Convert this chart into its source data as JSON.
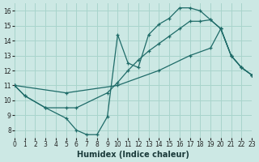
{
  "xlabel": "Humidex (Indice chaleur)",
  "background_color": "#cce8e4",
  "grid_color": "#a8d4cc",
  "line_color": "#1e6b68",
  "xlim": [
    0,
    23
  ],
  "ylim": [
    7.5,
    16.5
  ],
  "xticks": [
    0,
    1,
    2,
    3,
    4,
    5,
    6,
    7,
    8,
    9,
    10,
    11,
    12,
    13,
    14,
    15,
    16,
    17,
    18,
    19,
    20,
    21,
    22,
    23
  ],
  "yticks": [
    8,
    9,
    10,
    11,
    12,
    13,
    14,
    15,
    16
  ],
  "line1_x": [
    0,
    1,
    3,
    5,
    6,
    7,
    8,
    9,
    10,
    11,
    12,
    13,
    14,
    15,
    16,
    17,
    18,
    19,
    20,
    21,
    22,
    23
  ],
  "line1_y": [
    11,
    10.3,
    9.5,
    8.8,
    8.0,
    7.7,
    7.7,
    8.9,
    14.4,
    12.5,
    12.2,
    14.4,
    15.1,
    15.5,
    16.2,
    16.2,
    16.0,
    15.4,
    14.8,
    13.0,
    12.2,
    11.7
  ],
  "line2_x": [
    0,
    1,
    3,
    5,
    6,
    9,
    10,
    11,
    12,
    13,
    14,
    15,
    16,
    17,
    18,
    19,
    20,
    21,
    22,
    23
  ],
  "line2_y": [
    11,
    10.3,
    9.5,
    9.5,
    9.5,
    10.5,
    11.2,
    12.0,
    12.7,
    13.3,
    13.8,
    14.3,
    14.8,
    15.3,
    15.3,
    15.4,
    14.8,
    13.0,
    12.2,
    11.7
  ],
  "line3_x": [
    0,
    5,
    10,
    14,
    17,
    19,
    20,
    21,
    22,
    23
  ],
  "line3_y": [
    11,
    10.5,
    11.0,
    12.0,
    13.0,
    13.5,
    14.8,
    13.0,
    12.2,
    11.7
  ]
}
